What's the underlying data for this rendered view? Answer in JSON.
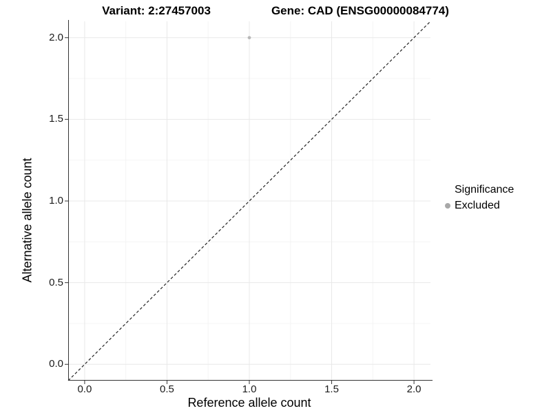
{
  "figure": {
    "title_variant": "Variant: 2:27457003",
    "title_gene": "Gene: CAD (ENSG00000084774)"
  },
  "chart_data": {
    "type": "scatter",
    "title": "Variant: 2:27457003   Gene: CAD (ENSG00000084774)",
    "xlabel": "Reference allele count",
    "ylabel": "Alternative allele count",
    "xlim": [
      -0.1,
      2.1
    ],
    "ylim": [
      -0.1,
      2.1
    ],
    "x_ticks": {
      "values": [
        0,
        0.5,
        1,
        1.5,
        2
      ],
      "labels": [
        "0.0",
        "0.5",
        "1.0",
        "1.5",
        "2.0"
      ]
    },
    "y_ticks": {
      "values": [
        0,
        0.5,
        1,
        1.5,
        2
      ],
      "labels": [
        "0.0",
        "0.5",
        "1.0",
        "1.5",
        "2.0"
      ]
    },
    "grid": {
      "major": true,
      "minor": true
    },
    "reference_line": {
      "type": "identity y = x",
      "style": "dashed",
      "color": "#222222"
    },
    "series": [
      {
        "name": "Excluded",
        "marker": "circle",
        "color": "#b8b8b8",
        "point_radius": 2.4,
        "points": [
          [
            1.0,
            2.0
          ]
        ]
      }
    ],
    "legend": {
      "title": "Significance",
      "position": "right",
      "entries": [
        {
          "label": "Excluded",
          "color": "#a8a8a8"
        }
      ]
    }
  },
  "colors": {
    "background": "#ffffff",
    "grid_major": "#e8e8e8",
    "grid_minor": "#f4f4f4",
    "axis_line": "#333333",
    "tick_text": "#1a1a1a",
    "title_text": "#000000"
  }
}
